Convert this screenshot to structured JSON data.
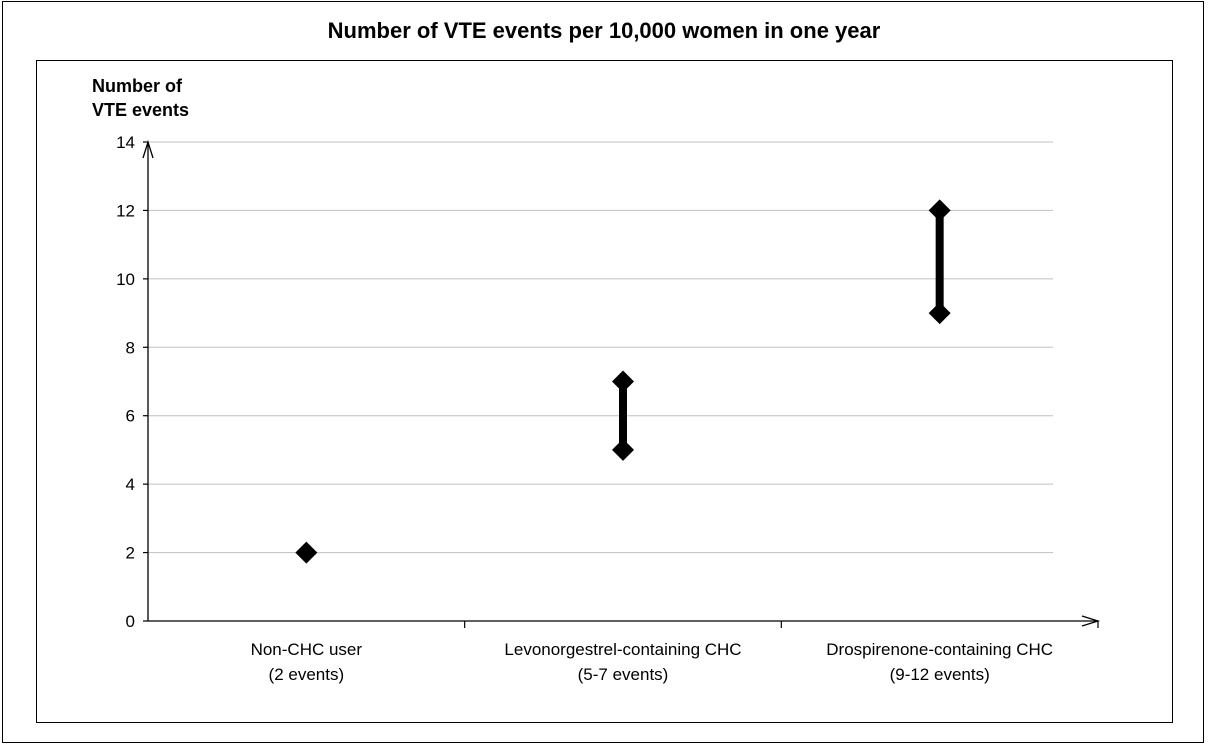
{
  "chart_data": {
    "type": "range",
    "title": "Number of VTE events per 10,000 women in one year",
    "ylabel_lines": [
      "Number of",
      "VTE events"
    ],
    "xlabel": "",
    "ylim": [
      0,
      14
    ],
    "yticks": [
      0,
      2,
      4,
      6,
      8,
      10,
      12,
      14
    ],
    "grid": true,
    "categories": [
      {
        "line1": "Non-CHC user",
        "line2": "(2 events)",
        "low": 2,
        "high": 2
      },
      {
        "line1": "Levonorgestrel-containing CHC",
        "line2": "(5-7 events)",
        "low": 5,
        "high": 7
      },
      {
        "line1": "Drospirenone-containing CHC",
        "line2": "(9-12 events)",
        "low": 9,
        "high": 12
      }
    ],
    "colors": {
      "marker": "#000000",
      "grid": "#c0c0c0",
      "axis": "#000000"
    }
  }
}
